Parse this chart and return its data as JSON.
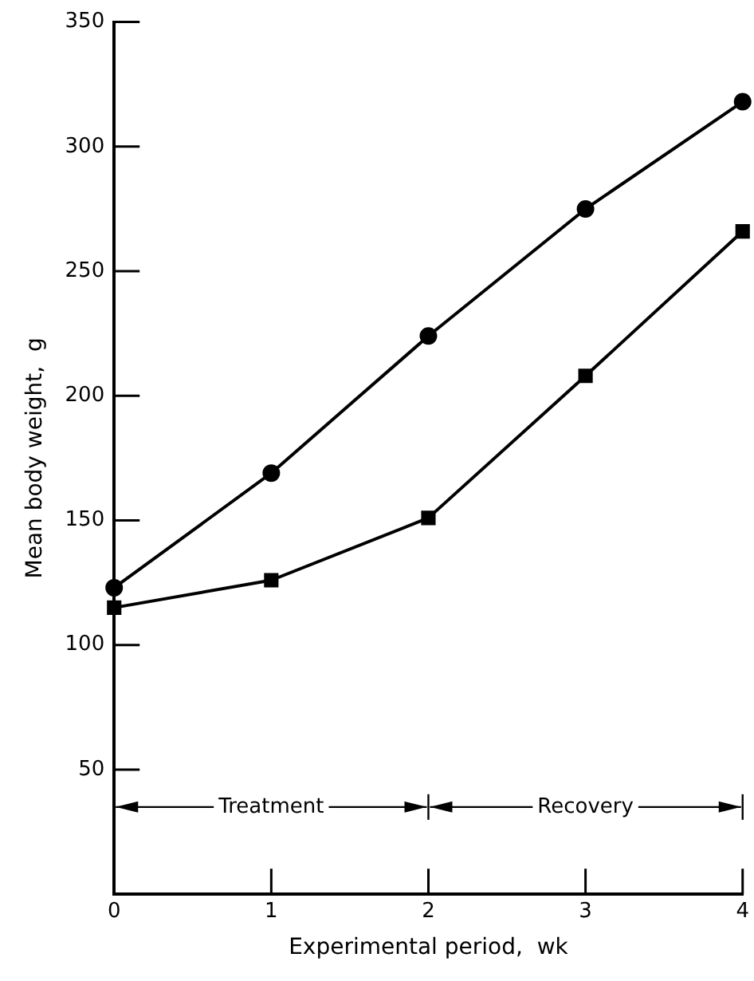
{
  "chart_data": {
    "type": "line",
    "xlabel": "Experimental period,  wk",
    "ylabel": "Mean body weight,  g",
    "x": [
      0,
      1,
      2,
      3,
      4
    ],
    "series": [
      {
        "color": "#000000",
        "marker": "circle",
        "values": [
          123,
          169,
          224,
          275,
          318
        ]
      },
      {
        "color": "#000000",
        "marker": "square",
        "values": [
          115,
          126,
          151,
          208,
          266
        ]
      }
    ],
    "xlim": [
      0,
      4
    ],
    "xticks": [
      0,
      1,
      2,
      3,
      4
    ],
    "ylim": [
      0,
      350
    ],
    "yticks": [
      50,
      100,
      150,
      200,
      250,
      300,
      350
    ],
    "annotations": [
      "Treatment",
      "Recovery"
    ],
    "grid": false,
    "legend": false,
    "line_style": "solid"
  }
}
